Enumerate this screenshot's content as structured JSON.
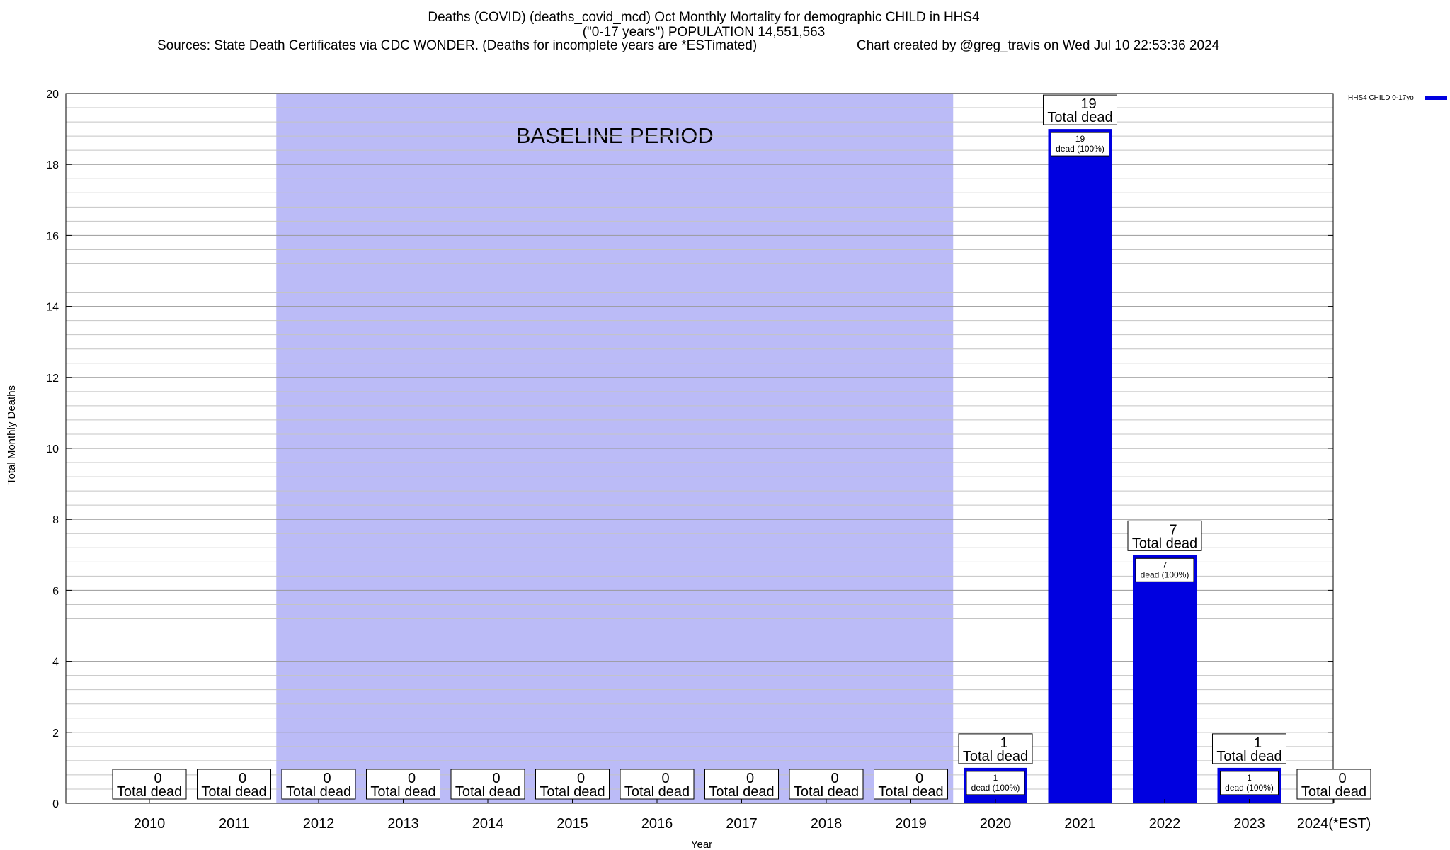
{
  "title": {
    "line1": "Deaths (COVID) (deaths_covid_mcd) Oct Monthly Mortality for demographic CHILD in HHS4",
    "line2": "(\"0-17 years\") POPULATION 14,551,563",
    "sources": "Sources: State Death Certificates via CDC WONDER. (Deaths for incomplete years are *ESTimated)",
    "credit": "Chart created by @greg_travis on Wed Jul 10 22:53:36 2024"
  },
  "chart_data": {
    "type": "bar",
    "title": "Deaths (COVID) (deaths_covid_mcd) Oct Monthly Mortality for demographic CHILD in HHS4",
    "xlabel": "Year",
    "ylabel": "Total Monthly Deaths",
    "ylim": [
      0,
      20
    ],
    "yticks": [
      0,
      2,
      4,
      6,
      8,
      10,
      12,
      14,
      16,
      18,
      20
    ],
    "categories": [
      "2010",
      "2011",
      "2012",
      "2013",
      "2014",
      "2015",
      "2016",
      "2017",
      "2018",
      "2019",
      "2020",
      "2021",
      "2022",
      "2023",
      "2024(*EST)"
    ],
    "series": [
      {
        "name": "HHS4 CHILD 0-17yo",
        "color": "#0000e0",
        "values": [
          0,
          0,
          0,
          0,
          0,
          0,
          0,
          0,
          0,
          0,
          1,
          19,
          7,
          1,
          0
        ]
      }
    ],
    "total_label_text": "Total dead",
    "inner_label_text": "dead (100%)",
    "baseline": {
      "label": "BASELINE PERIOD",
      "from": "2012",
      "to": "2019",
      "color": "#bbbbf7"
    },
    "legend": {
      "label": "HHS4 CHILD 0-17yo",
      "position": "top-right"
    },
    "grid": true
  }
}
